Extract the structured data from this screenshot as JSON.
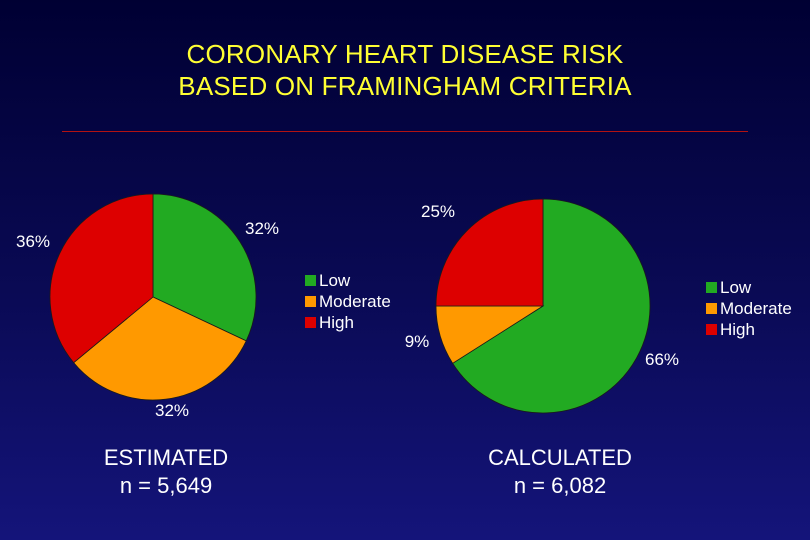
{
  "title": {
    "line1": "CORONARY HEART DISEASE RISK",
    "line2": "BASED ON FRAMINGHAM CRITERIA"
  },
  "chart_data": [
    {
      "type": "pie",
      "caption": [
        "ESTIMATED",
        "n = 5,649"
      ],
      "slices": [
        {
          "label": "Low",
          "value": 32,
          "display": "32%",
          "color": "#22aa22"
        },
        {
          "label": "Moderate",
          "value": 32,
          "display": "32%",
          "color": "#ff9900"
        },
        {
          "label": "High",
          "value": 36,
          "display": "36%",
          "color": "#dd0000"
        }
      ],
      "legend": {
        "placement": "right",
        "entries": [
          "Low",
          "Moderate",
          "High"
        ]
      }
    },
    {
      "type": "pie",
      "caption": [
        "CALCULATED",
        "n = 6,082"
      ],
      "slices": [
        {
          "label": "Low",
          "value": 66,
          "display": "66%",
          "color": "#22aa22"
        },
        {
          "label": "Moderate",
          "value": 9,
          "display": "9%",
          "color": "#ff9900"
        },
        {
          "label": "High",
          "value": 25,
          "display": "25%",
          "color": "#dd0000"
        }
      ],
      "legend": {
        "placement": "right",
        "entries": [
          "Low",
          "Moderate",
          "High"
        ]
      }
    }
  ]
}
